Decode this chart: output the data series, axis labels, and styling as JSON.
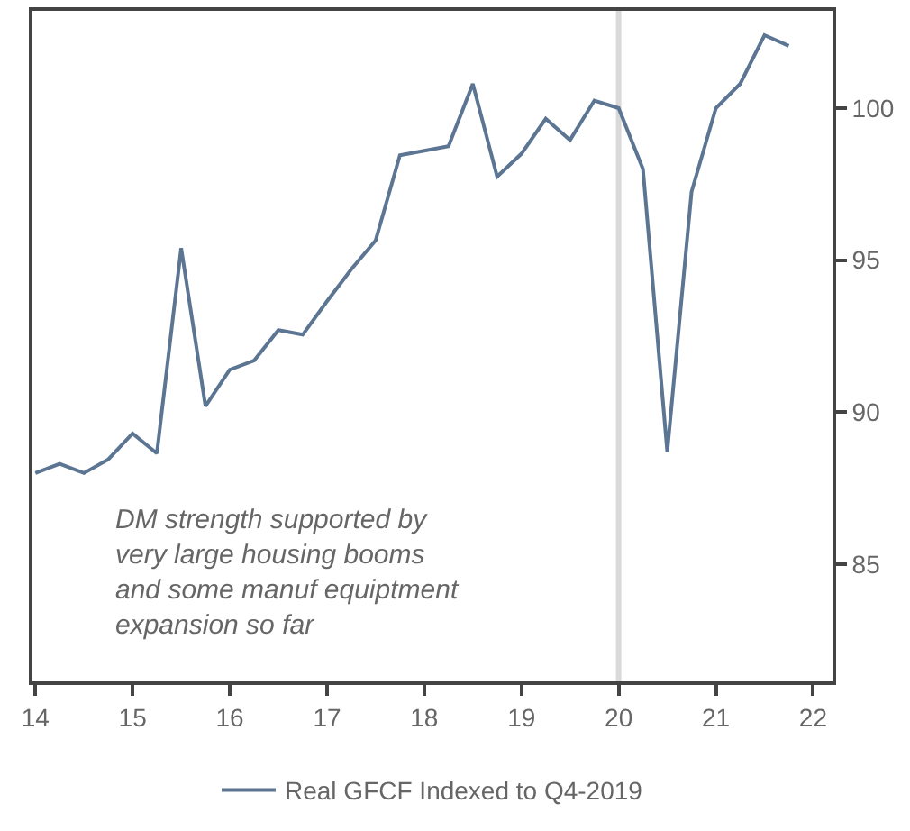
{
  "chart_data": {
    "type": "line",
    "x": [
      14,
      14.25,
      14.5,
      14.75,
      15,
      15.25,
      15.5,
      15.75,
      16,
      16.25,
      16.5,
      16.75,
      17,
      17.25,
      17.5,
      17.75,
      18,
      18.25,
      18.5,
      18.75,
      19,
      19.25,
      19.5,
      19.75,
      20,
      20.25,
      20.5,
      20.75,
      21,
      21.25,
      21.5,
      21.75
    ],
    "series": [
      {
        "name": "Real GFCF Indexed to Q4-2019",
        "color": "#5b7592",
        "values": [
          88.0,
          88.3,
          88.0,
          88.45,
          89.3,
          88.65,
          95.4,
          90.2,
          91.4,
          91.7,
          92.7,
          92.55,
          93.65,
          94.7,
          95.65,
          98.45,
          98.6,
          98.75,
          100.8,
          97.75,
          98.5,
          99.65,
          98.95,
          100.25,
          100.0,
          98.0,
          88.7,
          97.25,
          100.0,
          100.8,
          102.4,
          102.05
        ]
      }
    ],
    "xlim": [
      13.97,
      22.2
    ],
    "xticks": [
      14,
      15,
      16,
      17,
      18,
      19,
      20,
      21,
      22
    ],
    "ylim": [
      81.15,
      103.2
    ],
    "yticks": [
      85,
      90,
      95,
      100
    ],
    "ref_lines": [
      {
        "axis": "x",
        "value": 20,
        "color": "#d9d9d9"
      }
    ],
    "annotations": [
      "DM strength supported by\nvery large housing booms\nand some manuf equiptment\nexpansion so far"
    ],
    "grid": false,
    "legend": "bottom"
  }
}
